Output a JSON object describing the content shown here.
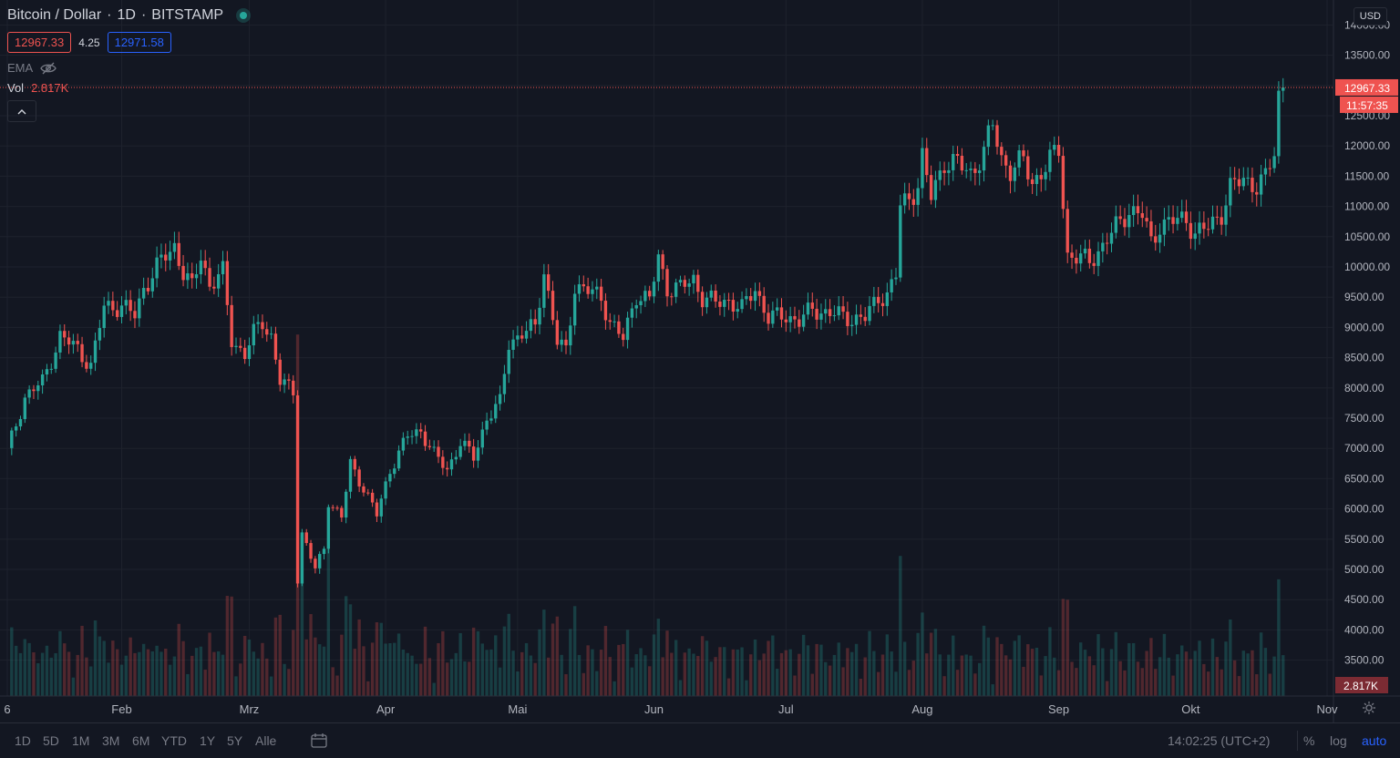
{
  "symbol": {
    "title": "Bitcoin / Dollar",
    "interval": "1D",
    "exchange": "BITSTAMP",
    "bid": "12967.33",
    "spread": "4.25",
    "ask": "12971.58"
  },
  "indicators": {
    "ema_label": "EMA",
    "vol_label": "Vol",
    "vol_value": "2.817K"
  },
  "price_axis": {
    "currency": "USD",
    "labels": [
      "14000.00",
      "13500.00",
      "13000.00",
      "12500.00",
      "12000.00",
      "11500.00",
      "11000.00",
      "10500.00",
      "10000.00",
      "9500.00",
      "9000.00",
      "8500.00",
      "8000.00",
      "7500.00",
      "7000.00",
      "6500.00",
      "6000.00",
      "5500.00",
      "5000.00",
      "4500.00",
      "4000.00",
      "3500.00"
    ],
    "last_price_label": "12967.33",
    "countdown_label": "11:57:35",
    "volume_label": "2.817K"
  },
  "time_axis": {
    "labels": [
      "6",
      "Feb",
      "Mrz",
      "Apr",
      "Mai",
      "Jun",
      "Jul",
      "Aug",
      "Sep",
      "Okt",
      "Nov"
    ]
  },
  "bottom_bar": {
    "ranges": [
      "1D",
      "5D",
      "1M",
      "3M",
      "6M",
      "YTD",
      "1Y",
      "5Y",
      "Alle"
    ],
    "clock": "14:02:25 (UTC+2)",
    "percent_label": "%",
    "log_label": "log",
    "auto_label": "auto"
  },
  "colors": {
    "background": "#131722",
    "up": "#26a69a",
    "down": "#ef5350",
    "grid": "#1e222d",
    "accent": "#2962ff"
  },
  "chart_data": {
    "type": "candlestick",
    "title": "Bitcoin / Dollar",
    "ylabel": "",
    "xlabel": "",
    "ylim": [
      3000,
      14200
    ],
    "y_scale": "linear",
    "x_range": [
      "2020-01-06",
      "2020-11-01"
    ],
    "grid": true,
    "month_ticks": [
      [
        "2020-01-06",
        "6"
      ],
      [
        "2020-02-01",
        "Feb"
      ],
      [
        "2020-03-01",
        "Mrz"
      ],
      [
        "2020-04-01",
        "Apr"
      ],
      [
        "2020-05-01",
        "Mai"
      ],
      [
        "2020-06-01",
        "Jun"
      ],
      [
        "2020-07-01",
        "Jul"
      ],
      [
        "2020-08-01",
        "Aug"
      ],
      [
        "2020-09-01",
        "Sep"
      ],
      [
        "2020-10-01",
        "Okt"
      ],
      [
        "2020-11-01",
        "Nov"
      ]
    ],
    "key_points": [
      [
        "2020-01-06",
        6950
      ],
      [
        "2020-01-10",
        7850
      ],
      [
        "2020-01-14",
        8100
      ],
      [
        "2020-01-18",
        8850
      ],
      [
        "2020-01-22",
        8650
      ],
      [
        "2020-01-25",
        8350
      ],
      [
        "2020-01-28",
        9350
      ],
      [
        "2020-02-01",
        9350
      ],
      [
        "2020-02-04",
        9200
      ],
      [
        "2020-02-06",
        9650
      ],
      [
        "2020-02-10",
        10100
      ],
      [
        "2020-02-13",
        10350
      ],
      [
        "2020-02-15",
        9900
      ],
      [
        "2020-02-17",
        9650
      ],
      [
        "2020-02-19",
        10200
      ],
      [
        "2020-02-21",
        9700
      ],
      [
        "2020-02-24",
        9900
      ],
      [
        "2020-02-26",
        8800
      ],
      [
        "2020-02-29",
        8550
      ],
      [
        "2020-03-02",
        8900
      ],
      [
        "2020-03-04",
        9100
      ],
      [
        "2020-03-06",
        8850
      ],
      [
        "2020-03-08",
        8100
      ],
      [
        "2020-03-11",
        7950
      ],
      [
        "2020-03-12",
        4850
      ],
      [
        "2020-03-13",
        5600
      ],
      [
        "2020-03-16",
        5000
      ],
      [
        "2020-03-18",
        5350
      ],
      [
        "2020-03-19",
        6150
      ],
      [
        "2020-03-22",
        5850
      ],
      [
        "2020-03-24",
        6750
      ],
      [
        "2020-03-27",
        6350
      ],
      [
        "2020-03-30",
        5900
      ],
      [
        "2020-04-02",
        6650
      ],
      [
        "2020-04-06",
        7200
      ],
      [
        "2020-04-09",
        7300
      ],
      [
        "2020-04-12",
        6900
      ],
      [
        "2020-04-15",
        6650
      ],
      [
        "2020-04-18",
        7100
      ],
      [
        "2020-04-21",
        6850
      ],
      [
        "2020-04-24",
        7500
      ],
      [
        "2020-04-27",
        7750
      ],
      [
        "2020-04-29",
        8750
      ],
      [
        "2020-05-02",
        8900
      ],
      [
        "2020-05-05",
        9000
      ],
      [
        "2020-05-07",
        9950
      ],
      [
        "2020-05-10",
        8750
      ],
      [
        "2020-05-12",
        8600
      ],
      [
        "2020-05-14",
        9700
      ],
      [
        "2020-05-17",
        9600
      ],
      [
        "2020-05-20",
        9500
      ],
      [
        "2020-05-22",
        9100
      ],
      [
        "2020-05-25",
        8800
      ],
      [
        "2020-05-28",
        9550
      ],
      [
        "2020-05-31",
        9450
      ],
      [
        "2020-06-02",
        10150
      ],
      [
        "2020-06-04",
        9650
      ],
      [
        "2020-06-07",
        9650
      ],
      [
        "2020-06-10",
        9800
      ],
      [
        "2020-06-12",
        9500
      ],
      [
        "2020-06-15",
        9400
      ],
      [
        "2020-06-18",
        9450
      ],
      [
        "2020-06-21",
        9300
      ],
      [
        "2020-06-24",
        9650
      ],
      [
        "2020-06-27",
        9150
      ],
      [
        "2020-07-01",
        9200
      ],
      [
        "2020-07-04",
        9100
      ],
      [
        "2020-07-07",
        9300
      ],
      [
        "2020-07-10",
        9250
      ],
      [
        "2020-07-13",
        9200
      ],
      [
        "2020-07-16",
        9150
      ],
      [
        "2020-07-19",
        9150
      ],
      [
        "2020-07-22",
        9500
      ],
      [
        "2020-07-24",
        9550
      ],
      [
        "2020-07-26",
        9850
      ],
      [
        "2020-07-27",
        11000
      ],
      [
        "2020-07-29",
        11150
      ],
      [
        "2020-07-31",
        11350
      ],
      [
        "2020-08-01",
        11800
      ],
      [
        "2020-08-03",
        11150
      ],
      [
        "2020-08-06",
        11750
      ],
      [
        "2020-08-09",
        11700
      ],
      [
        "2020-08-12",
        11550
      ],
      [
        "2020-08-15",
        11900
      ],
      [
        "2020-08-17",
        12350
      ],
      [
        "2020-08-19",
        11800
      ],
      [
        "2020-08-21",
        11600
      ],
      [
        "2020-08-24",
        11750
      ],
      [
        "2020-08-26",
        11400
      ],
      [
        "2020-08-29",
        11650
      ],
      [
        "2020-09-01",
        11950
      ],
      [
        "2020-09-03",
        10200
      ],
      [
        "2020-09-05",
        10150
      ],
      [
        "2020-09-08",
        10100
      ],
      [
        "2020-09-11",
        10350
      ],
      [
        "2020-09-14",
        10650
      ],
      [
        "2020-09-17",
        10950
      ],
      [
        "2020-09-20",
        10850
      ],
      [
        "2020-09-22",
        10400
      ],
      [
        "2020-09-24",
        10700
      ],
      [
        "2020-09-27",
        10750
      ],
      [
        "2020-09-30",
        10800
      ],
      [
        "2020-10-02",
        10550
      ],
      [
        "2020-10-05",
        10650
      ],
      [
        "2020-10-08",
        10900
      ],
      [
        "2020-10-10",
        11300
      ],
      [
        "2020-10-13",
        11450
      ],
      [
        "2020-10-16",
        11350
      ],
      [
        "2020-10-18",
        11450
      ],
      [
        "2020-10-20",
        11900
      ],
      [
        "2020-10-21",
        12850
      ],
      [
        "2020-10-22",
        12967
      ]
    ]
  }
}
